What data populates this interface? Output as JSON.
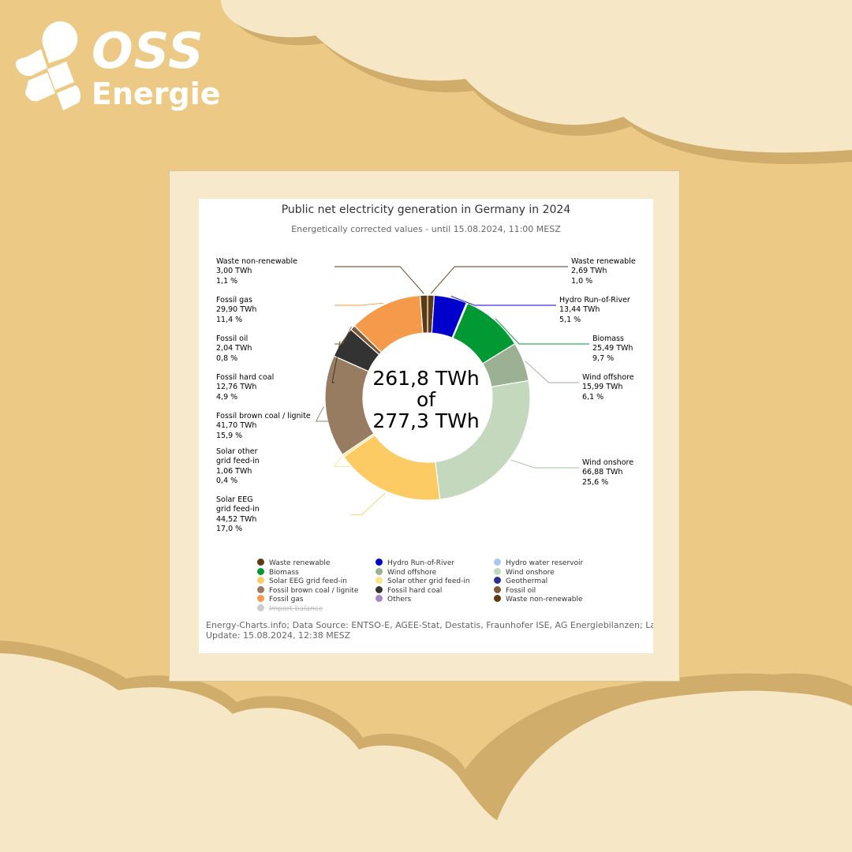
{
  "brand": {
    "line1": "OSS",
    "line2": "Energie"
  },
  "colors": {
    "background": "#ecca85",
    "cloud": "#f6e7c6",
    "cloud_edge": "#d1ad6b"
  },
  "chart_data": {
    "type": "pie",
    "title": "Public net electricity generation in Germany in 2024",
    "subtitle": "Energetically corrected values - until 15.08.2024, 11:00 MESZ",
    "center_label": [
      "261,8 TWh",
      "of",
      "277,3 TWh"
    ],
    "unit": "TWh",
    "slices": [
      {
        "name": "Waste renewable",
        "value": 2.69,
        "value_label": "2,69 TWh",
        "percent_label": "1,0 %",
        "color": "#5c3a12"
      },
      {
        "name": "Hydro Run-of-River",
        "value": 13.44,
        "value_label": "13,44 TWh",
        "percent_label": "5,1 %",
        "color": "#0000cc"
      },
      {
        "name": "Hydro water reservoir",
        "value": 0.5,
        "color": "#a9c9ef"
      },
      {
        "name": "Biomass",
        "value": 25.49,
        "value_label": "25,49 TWh",
        "percent_label": "9,7 %",
        "color": "#009933"
      },
      {
        "name": "Wind offshore",
        "value": 15.99,
        "value_label": "15,99 TWh",
        "percent_label": "6,1 %",
        "color": "#9cb193"
      },
      {
        "name": "Wind onshore",
        "value": 66.88,
        "value_label": "66,88 TWh",
        "percent_label": "25,6 %",
        "color": "#c3d8bd"
      },
      {
        "name": "Solar EEG grid feed-in",
        "label": "Solar EEG\ngrid feed-in",
        "value": 44.52,
        "value_label": "44,52 TWh",
        "percent_label": "17,0 %",
        "color": "#fdcb64"
      },
      {
        "name": "Solar other grid feed-in",
        "label": "Solar other\ngrid feed-in",
        "value": 1.06,
        "value_label": "1,06 TWh",
        "percent_label": "0,4 %",
        "color": "#fde28b"
      },
      {
        "name": "Fossil brown coal / lignite",
        "value": 41.7,
        "value_label": "41,70 TWh",
        "percent_label": "15,9 %",
        "color": "#977c61"
      },
      {
        "name": "Fossil hard coal",
        "value": 12.76,
        "value_label": "12,76 TWh",
        "percent_label": "4,9 %",
        "color": "#333333"
      },
      {
        "name": "Fossil oil",
        "value": 2.04,
        "value_label": "2,04 TWh",
        "percent_label": "0,8 %",
        "color": "#7d5a3c"
      },
      {
        "name": "Fossil gas",
        "value": 29.9,
        "value_label": "29,90 TWh",
        "percent_label": "11,4 %",
        "color": "#f59a4a"
      },
      {
        "name": "Waste non-renewable",
        "value": 3.0,
        "value_label": "3,00 TWh",
        "percent_label": "1,1 %",
        "color": "#5c3a12"
      }
    ],
    "legend": {
      "placement": "bottom",
      "items": [
        {
          "name": "Waste renewable",
          "color": "#5c3a12"
        },
        {
          "name": "Hydro Run-of-River",
          "color": "#0000cc"
        },
        {
          "name": "Hydro water reservoir",
          "color": "#a9c9ef"
        },
        {
          "name": "Biomass",
          "color": "#009933"
        },
        {
          "name": "Wind offshore",
          "color": "#9cb193"
        },
        {
          "name": "Wind onshore",
          "color": "#c3d8bd"
        },
        {
          "name": "Solar EEG grid feed-in",
          "color": "#fdcb64"
        },
        {
          "name": "Solar other grid feed-in",
          "color": "#fde28b"
        },
        {
          "name": "Geothermal",
          "color": "#2e3192"
        },
        {
          "name": "Fossil brown coal / lignite",
          "color": "#977c61"
        },
        {
          "name": "Fossil hard coal",
          "color": "#333333"
        },
        {
          "name": "Fossil oil",
          "color": "#7d5a3c"
        },
        {
          "name": "Fossil gas",
          "color": "#f59a4a"
        },
        {
          "name": "Others",
          "color": "#a785c7"
        },
        {
          "name": "Waste non-renewable",
          "color": "#5c3a12"
        },
        {
          "name": "Import balance",
          "color": "#cccccc",
          "hidden": true
        }
      ]
    },
    "credits": [
      "Energy-Charts.info; Data Source: ENTSO-E, AGEE-Stat, Destatis, Fraunhofer ISE, AG Energiebilanzen; La",
      "Update: 15.08.2024, 12:38 MESZ"
    ]
  }
}
